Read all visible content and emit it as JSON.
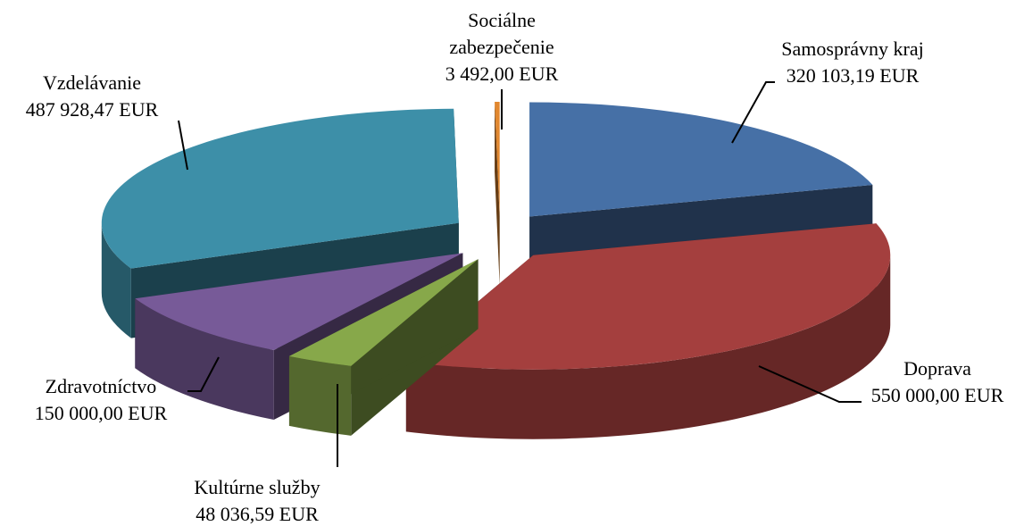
{
  "chart_data": {
    "type": "pie",
    "title": "",
    "style": "3d-exploded",
    "slices": [
      {
        "name": "Samosprávny kraj",
        "value": 320103.19,
        "value_label": "320 103,19 EUR",
        "color": "#4670a6"
      },
      {
        "name": "Doprava",
        "value": 550000.0,
        "value_label": "550 000,00 EUR",
        "color": "#a43f3e"
      },
      {
        "name": "Kultúrne služby",
        "value": 48036.59,
        "value_label": "48 036,59 EUR",
        "color": "#87a84a"
      },
      {
        "name": "Zdravotníctvo",
        "value": 150000.0,
        "value_label": "150 000,00 EUR",
        "color": "#775a98"
      },
      {
        "name": "Vzdelávanie",
        "value": 487928.47,
        "value_label": "487 928,47 EUR",
        "color": "#3d8fa8"
      },
      {
        "name_lines": [
          "Sociálne",
          "zabezpečenie"
        ],
        "name": "Sociálne zabezpečenie",
        "value": 3492.0,
        "value_label": "3 492,00 EUR",
        "color": "#e2882f"
      }
    ]
  }
}
